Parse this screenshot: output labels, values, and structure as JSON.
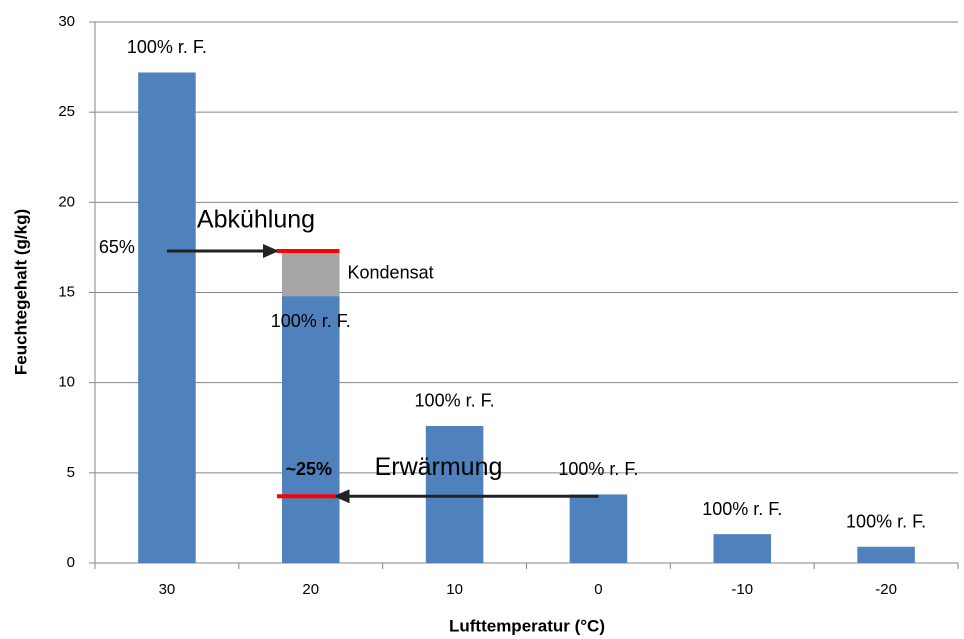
{
  "chart_data": {
    "type": "bar",
    "x_label": "Lufttemperatur (°C)",
    "y_label": "Feuchtegehalt  (g/kg)",
    "categories": [
      "30",
      "20",
      "10",
      "0",
      "-10",
      "-20"
    ],
    "series": [
      {
        "name": "Feuchtegehalt",
        "color": "#4f81bd",
        "values": [
          27.2,
          14.8,
          7.6,
          3.8,
          1.6,
          0.9
        ]
      },
      {
        "name": "Kondensat",
        "color": "#a6a6a6",
        "values": [
          null,
          2.5,
          null,
          null,
          null,
          null
        ]
      }
    ],
    "bar_labels": [
      "100% r. F.",
      "100% r. F.",
      "100% r. F.",
      "100% r. F.",
      "100% r. F.",
      "100% r. F."
    ],
    "cooling": {
      "label": "Abkühlung",
      "start_label": "65%",
      "value": 17.3
    },
    "heating": {
      "label": "Erwärmung",
      "end_label": "~25%",
      "value": 3.7
    },
    "marker_color": "#ff0000",
    "ylim": [
      0,
      30
    ],
    "yticks": [
      0,
      5,
      10,
      15,
      20,
      25,
      30
    ],
    "grid": true,
    "legend": false
  }
}
